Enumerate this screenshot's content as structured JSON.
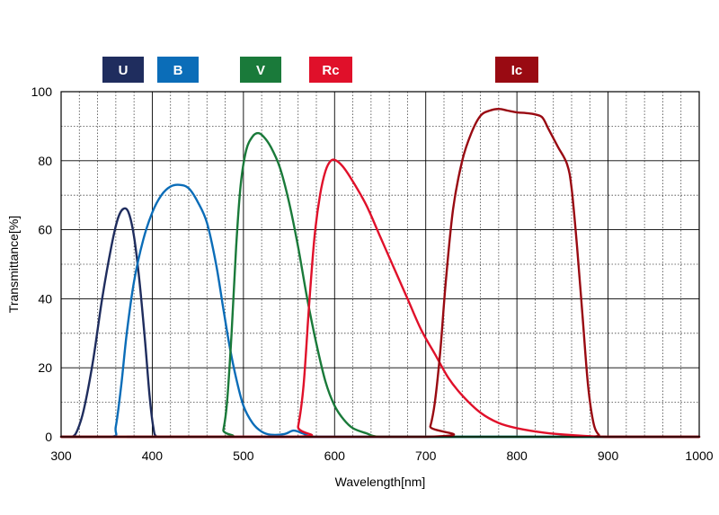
{
  "chart_data": {
    "type": "line",
    "title": "",
    "xlabel": "Wavelength[nm]",
    "ylabel": "Transmittance[%]",
    "xlim": [
      300,
      1000
    ],
    "ylim": [
      0,
      100
    ],
    "x_ticks": [
      300,
      400,
      500,
      600,
      700,
      800,
      900,
      1000
    ],
    "y_ticks": [
      0,
      20,
      40,
      60,
      80,
      100
    ],
    "grid": "major solid, minor dotted",
    "legend": "top, colored badges",
    "series": [
      {
        "name": "U",
        "color": "#1f2d5e",
        "points": [
          [
            300,
            0
          ],
          [
            312,
            0
          ],
          [
            318,
            2
          ],
          [
            325,
            8
          ],
          [
            335,
            22
          ],
          [
            345,
            40
          ],
          [
            355,
            55
          ],
          [
            362,
            63
          ],
          [
            368,
            66
          ],
          [
            374,
            65
          ],
          [
            380,
            58
          ],
          [
            386,
            45
          ],
          [
            392,
            28
          ],
          [
            397,
            12
          ],
          [
            401,
            3
          ],
          [
            405,
            0
          ],
          [
            420,
            0
          ],
          [
            1000,
            0
          ]
        ]
      },
      {
        "name": "B",
        "color": "#0b6db8",
        "points": [
          [
            300,
            0
          ],
          [
            355,
            0
          ],
          [
            360,
            3
          ],
          [
            366,
            15
          ],
          [
            372,
            30
          ],
          [
            380,
            45
          ],
          [
            390,
            57
          ],
          [
            400,
            65
          ],
          [
            410,
            70
          ],
          [
            420,
            72.5
          ],
          [
            430,
            73
          ],
          [
            440,
            72
          ],
          [
            450,
            68
          ],
          [
            460,
            62
          ],
          [
            470,
            50
          ],
          [
            478,
            37
          ],
          [
            485,
            26
          ],
          [
            492,
            17
          ],
          [
            500,
            9
          ],
          [
            510,
            4
          ],
          [
            520,
            1.5
          ],
          [
            530,
            0.6
          ],
          [
            545,
            0.8
          ],
          [
            555,
            1.8
          ],
          [
            565,
            1
          ],
          [
            575,
            0
          ],
          [
            600,
            0
          ],
          [
            1000,
            0
          ]
        ]
      },
      {
        "name": "V",
        "color": "#1a7a3a",
        "points": [
          [
            300,
            0
          ],
          [
            475,
            0
          ],
          [
            478,
            2
          ],
          [
            482,
            10
          ],
          [
            487,
            30
          ],
          [
            492,
            55
          ],
          [
            497,
            73
          ],
          [
            503,
            83
          ],
          [
            510,
            87
          ],
          [
            516,
            88
          ],
          [
            522,
            87
          ],
          [
            530,
            84
          ],
          [
            540,
            78
          ],
          [
            550,
            68
          ],
          [
            560,
            55
          ],
          [
            570,
            40
          ],
          [
            580,
            27
          ],
          [
            590,
            16
          ],
          [
            600,
            9
          ],
          [
            610,
            5
          ],
          [
            620,
            2.5
          ],
          [
            635,
            1
          ],
          [
            650,
            0
          ],
          [
            700,
            0
          ],
          [
            1000,
            0
          ]
        ]
      },
      {
        "name": "Rc",
        "color": "#e0102a",
        "points": [
          [
            300,
            0
          ],
          [
            555,
            0
          ],
          [
            560,
            3
          ],
          [
            566,
            15
          ],
          [
            572,
            38
          ],
          [
            578,
            58
          ],
          [
            584,
            70
          ],
          [
            590,
            77
          ],
          [
            596,
            80
          ],
          [
            602,
            80
          ],
          [
            610,
            78
          ],
          [
            620,
            74
          ],
          [
            635,
            67
          ],
          [
            650,
            58
          ],
          [
            665,
            49
          ],
          [
            680,
            40
          ],
          [
            695,
            31
          ],
          [
            710,
            24
          ],
          [
            725,
            17
          ],
          [
            740,
            12
          ],
          [
            760,
            7
          ],
          [
            780,
            4
          ],
          [
            800,
            2.5
          ],
          [
            830,
            1.2
          ],
          [
            860,
            0.5
          ],
          [
            900,
            0
          ],
          [
            1000,
            0
          ]
        ]
      },
      {
        "name": "Ic",
        "color": "#990a12",
        "points": [
          [
            300,
            0
          ],
          [
            700,
            0
          ],
          [
            705,
            3
          ],
          [
            710,
            10
          ],
          [
            716,
            25
          ],
          [
            722,
            45
          ],
          [
            730,
            66
          ],
          [
            740,
            80
          ],
          [
            750,
            88
          ],
          [
            760,
            93
          ],
          [
            770,
            94.5
          ],
          [
            780,
            95
          ],
          [
            790,
            94.5
          ],
          [
            800,
            94
          ],
          [
            810,
            93.8
          ],
          [
            820,
            93.4
          ],
          [
            828,
            92.5
          ],
          [
            835,
            89
          ],
          [
            845,
            84
          ],
          [
            855,
            79
          ],
          [
            860,
            72
          ],
          [
            866,
            55
          ],
          [
            872,
            35
          ],
          [
            878,
            15
          ],
          [
            884,
            4
          ],
          [
            890,
            0.5
          ],
          [
            895,
            0
          ],
          [
            1000,
            0
          ]
        ]
      }
    ]
  }
}
